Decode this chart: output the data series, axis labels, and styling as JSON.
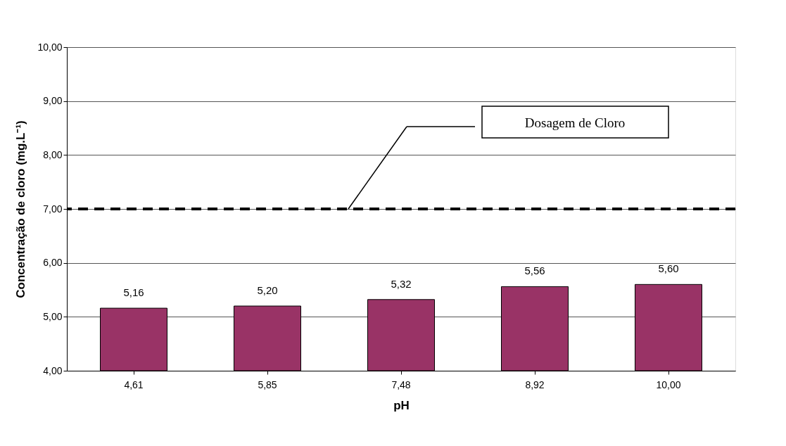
{
  "chart_data": {
    "type": "bar",
    "xlabel": "pH",
    "ylabel": "Concentração de cloro (mg.L⁻¹)",
    "categories": [
      "4,61",
      "5,85",
      "7,48",
      "8,92",
      "10,00"
    ],
    "values": [
      5.16,
      5.2,
      5.32,
      5.56,
      5.6
    ],
    "color": "#993366",
    "value_labels": [
      "5,16",
      "5,20",
      "5,32",
      "5,56",
      "5,60"
    ],
    "ylim": [
      4,
      10
    ],
    "yticks": [
      {
        "value": 4,
        "label": "4,00"
      },
      {
        "value": 5,
        "label": "5,00"
      },
      {
        "value": 6,
        "label": "6,00"
      },
      {
        "value": 7,
        "label": "7,00"
      },
      {
        "value": 8,
        "label": "8,00"
      },
      {
        "value": 9,
        "label": "9,00"
      },
      {
        "value": 10,
        "label": "10,00"
      }
    ],
    "grid": "y",
    "ref_lines": [
      {
        "axis": "y",
        "value": 7,
        "label": "Dosagem de Cloro",
        "color": "#000000",
        "line_style": "dashed"
      }
    ]
  }
}
